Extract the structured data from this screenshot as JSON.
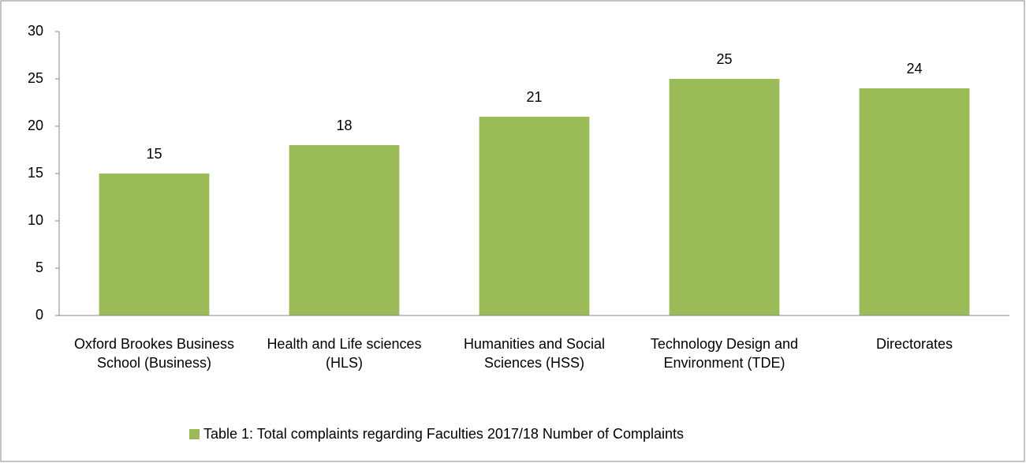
{
  "chart_data": {
    "type": "bar",
    "categories": [
      "Oxford Brookes Business School (Business)",
      "Health and Life sciences (HLS)",
      "Humanities and Social Sciences (HSS)",
      "Technology Design and Environment (TDE)",
      "Directorates"
    ],
    "series": [
      {
        "name": "Table 1: Total complaints regarding Faculties 2017/18 Number of Complaints",
        "color": "#9bbb59",
        "values": [
          15,
          18,
          21,
          25,
          24
        ]
      }
    ],
    "ylim": [
      0,
      30
    ],
    "yticks": [
      0,
      5,
      10,
      15,
      20,
      25,
      30
    ],
    "grid": false,
    "legend": "bottom",
    "data_labels": true
  }
}
